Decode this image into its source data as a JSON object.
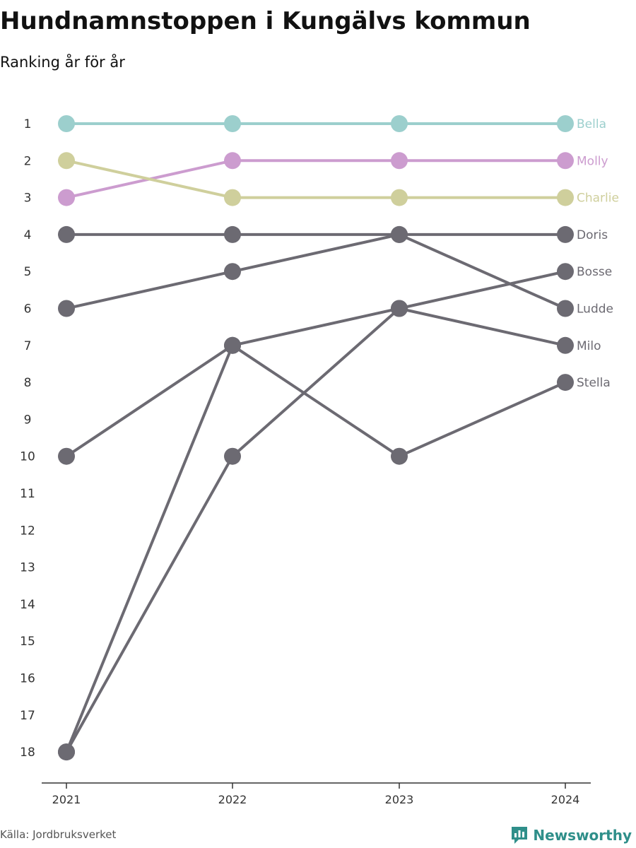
{
  "title": "Hundnamnstoppen i Kungälvs kommun",
  "subtitle": "Ranking år för år",
  "source": "Källa: Jordbruksverket",
  "brand": {
    "label": "Newsworthy",
    "icon": "newsworthy-logo-icon"
  },
  "colors": {
    "bella": "#9ccfcd",
    "molly": "#cc9ccf",
    "charlie": "#cfcf9c",
    "gray": "#6c6a72"
  },
  "chart_data": {
    "type": "line",
    "x": [
      "2021",
      "2022",
      "2023",
      "2024"
    ],
    "y_ticks": [
      "1",
      "2",
      "3",
      "4",
      "5",
      "6",
      "7",
      "8",
      "9",
      "10",
      "11",
      "12",
      "13",
      "14",
      "15",
      "16",
      "17",
      "18"
    ],
    "ylim": [
      1,
      18
    ],
    "y_reversed": true,
    "series": [
      {
        "name": "Bella",
        "color": "#9ccfcd",
        "values": [
          1,
          1,
          1,
          1
        ]
      },
      {
        "name": "Molly",
        "color": "#cc9ccf",
        "values": [
          3,
          2,
          2,
          2
        ]
      },
      {
        "name": "Charlie",
        "color": "#cfcf9c",
        "values": [
          2,
          3,
          3,
          3
        ]
      },
      {
        "name": "Doris",
        "color": "#6c6a72",
        "values": [
          4,
          4,
          4,
          4
        ]
      },
      {
        "name": "Bosse",
        "color": "#6c6a72",
        "values": [
          18,
          10,
          6,
          5
        ]
      },
      {
        "name": "Ludde",
        "color": "#6c6a72",
        "values": [
          6,
          5,
          4,
          6
        ]
      },
      {
        "name": "Milo",
        "color": "#6c6a72",
        "values": [
          10,
          7,
          6,
          7
        ]
      },
      {
        "name": "Stella",
        "color": "#6c6a72",
        "values": [
          18,
          7,
          10,
          8
        ]
      }
    ]
  }
}
